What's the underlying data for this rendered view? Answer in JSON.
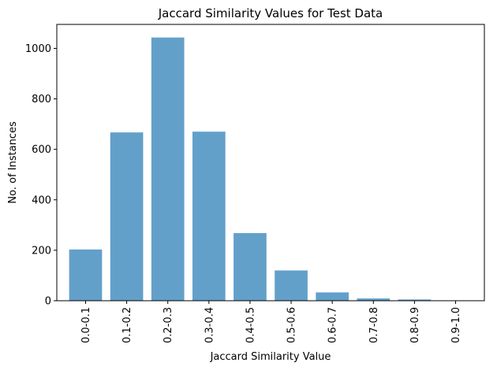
{
  "chart_data": {
    "type": "bar",
    "title": "Jaccard Similarity Values for Test Data",
    "xlabel": "Jaccard Similarity Value",
    "ylabel": "No. of Instances",
    "categories": [
      "0.0-0.1",
      "0.1-0.2",
      "0.2-0.3",
      "0.3-0.4",
      "0.4-0.5",
      "0.5-0.6",
      "0.6-0.7",
      "0.7-0.8",
      "0.8-0.9",
      "0.9-1.0"
    ],
    "values": [
      203,
      667,
      1043,
      670,
      268,
      120,
      33,
      9,
      5,
      1
    ],
    "ylim": [
      0,
      1095
    ],
    "yticks": [
      0,
      200,
      400,
      600,
      800,
      1000
    ],
    "bar_color": "#1f77b4",
    "bar_opacity": 0.7,
    "grid": false,
    "legend": "none"
  }
}
